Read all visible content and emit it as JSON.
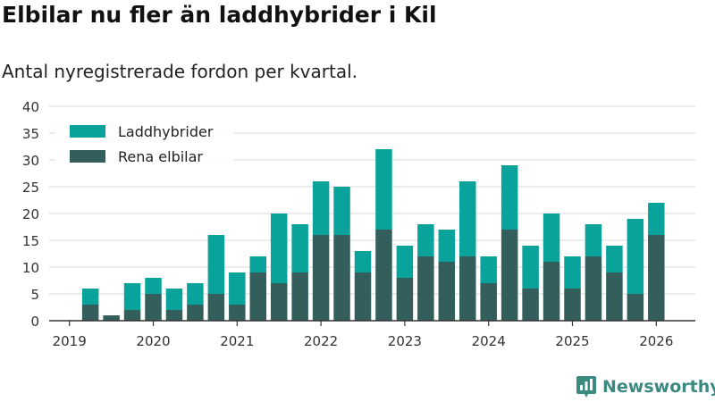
{
  "title": "Elbilar nu fler än laddhybrider i Kil",
  "subtitle": "Antal nyregistrerade fordon per kvartal.",
  "brand": {
    "name": "Newsworthy",
    "icon": "bar-chart-icon"
  },
  "colors": {
    "phev": "#0aa39b",
    "bev": "#335e5b",
    "grid": "#d9d9d9",
    "axis": "#333333"
  },
  "chart_data": {
    "type": "bar",
    "stacked": true,
    "title": "Elbilar nu fler än laddhybrider i Kil",
    "subtitle": "Antal nyregistrerade fordon per kvartal.",
    "xlabel": "",
    "ylabel": "",
    "ylim": [
      0,
      40
    ],
    "yticks": [
      "0",
      "5",
      "10",
      "15",
      "20",
      "25",
      "30",
      "35",
      "40"
    ],
    "xticks": [
      "2019",
      "2020",
      "2021",
      "2022",
      "2023",
      "2024",
      "2025",
      "2026"
    ],
    "legend_position": "top-left",
    "categories": [
      "2019 Q2",
      "2019 Q3",
      "2019 Q4",
      "2020 Q1",
      "2020 Q2",
      "2020 Q3",
      "2020 Q4",
      "2021 Q1",
      "2021 Q2",
      "2021 Q3",
      "2021 Q4",
      "2022 Q1",
      "2022 Q2",
      "2022 Q3",
      "2022 Q4",
      "2023 Q1",
      "2023 Q2",
      "2023 Q3",
      "2023 Q4",
      "2024 Q1",
      "2024 Q2",
      "2024 Q3",
      "2024 Q4",
      "2025 Q1",
      "2025 Q2",
      "2025 Q3",
      "2025 Q4",
      "2026 Q1"
    ],
    "series": [
      {
        "name": "Rena elbilar",
        "values": [
          3,
          1,
          2,
          5,
          2,
          3,
          5,
          3,
          9,
          7,
          9,
          16,
          16,
          9,
          17,
          8,
          12,
          11,
          12,
          7,
          17,
          6,
          11,
          6,
          12,
          9,
          5,
          16
        ]
      },
      {
        "name": "Laddhybrider",
        "values": [
          3,
          0,
          5,
          3,
          4,
          4,
          11,
          6,
          3,
          13,
          9,
          10,
          9,
          4,
          15,
          6,
          6,
          6,
          14,
          5,
          12,
          8,
          9,
          6,
          6,
          5,
          14,
          6
        ]
      }
    ],
    "legend": [
      "Laddhybrider",
      "Rena elbilar"
    ]
  }
}
